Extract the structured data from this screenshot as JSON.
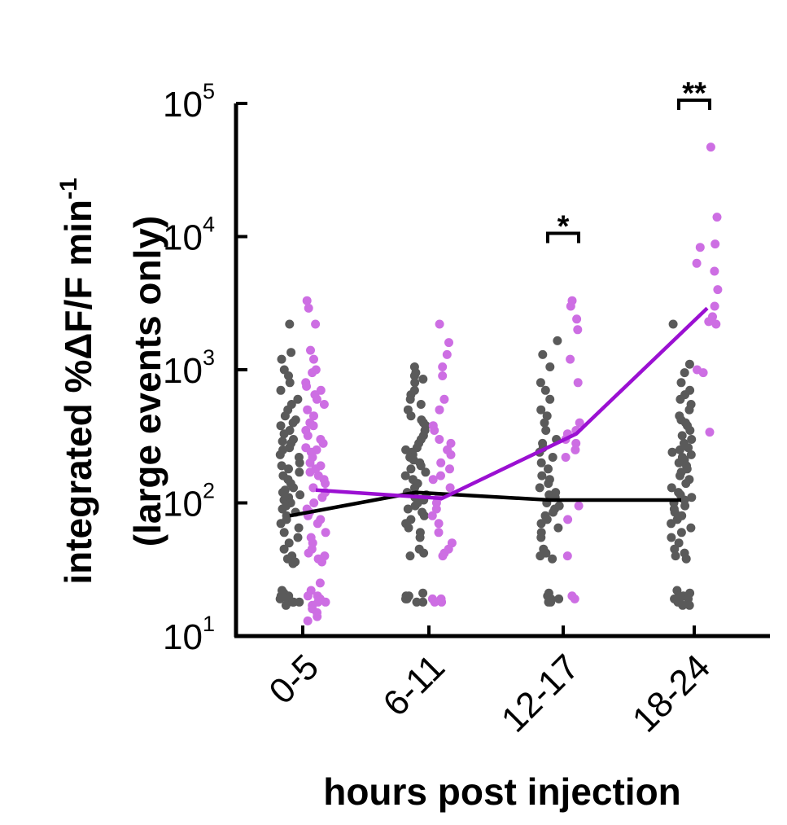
{
  "chart_data": {
    "type": "scatter",
    "xlabel": "hours post injection",
    "ylabel_line1": "integrated %ΔF/F min",
    "ylabel_sup": "-1",
    "ylabel_line2": "(large events only)",
    "yscale": "log",
    "ylim": [
      10,
      100000
    ],
    "yticks": [
      {
        "base": "10",
        "exp": "1",
        "value": 10
      },
      {
        "base": "10",
        "exp": "2",
        "value": 100
      },
      {
        "base": "10",
        "exp": "3",
        "value": 1000
      },
      {
        "base": "10",
        "exp": "4",
        "value": 10000
      },
      {
        "base": "10",
        "exp": "5",
        "value": 100000
      }
    ],
    "categories": [
      "0-5",
      "6-11",
      "12-17",
      "18-24"
    ],
    "colors": {
      "control": "#5a5a5a",
      "treated": "#cd6ee3",
      "control_line": "#000000",
      "treated_line": "#9b10d2"
    },
    "series": [
      {
        "role": "control",
        "medians": [
          80,
          120,
          105,
          105
        ]
      },
      {
        "role": "treated",
        "medians": [
          125,
          108,
          330,
          2900
        ]
      }
    ],
    "significance": [
      {
        "category": "12-17",
        "label": "*",
        "y": 10000
      },
      {
        "category": "18-24",
        "label": "**",
        "y": 100000
      }
    ],
    "points": {
      "control": [
        [
          2200,
          1350,
          1200,
          1000,
          900,
          800,
          700,
          600,
          550,
          500,
          450,
          420,
          400,
          380,
          350,
          330,
          300,
          290,
          280,
          260,
          250,
          230,
          220,
          200,
          190,
          180,
          170,
          160,
          150,
          140,
          130,
          125,
          120,
          115,
          110,
          105,
          100,
          95,
          90,
          85,
          80,
          75,
          70,
          65,
          60,
          55,
          50,
          45,
          40,
          38,
          36,
          35,
          22,
          21,
          20,
          20,
          19,
          19,
          18,
          18,
          18,
          17
        ],
        [
          1050,
          950,
          900,
          850,
          800,
          700,
          650,
          600,
          550,
          500,
          450,
          420,
          400,
          380,
          350,
          320,
          300,
          280,
          260,
          250,
          240,
          230,
          220,
          210,
          200,
          190,
          180,
          170,
          160,
          150,
          140,
          130,
          120,
          115,
          110,
          105,
          100,
          95,
          90,
          85,
          80,
          75,
          70,
          65,
          60,
          55,
          45,
          42,
          40,
          21,
          20,
          20,
          19,
          19,
          18,
          18
        ],
        [
          1650,
          1300,
          1050,
          800,
          700,
          600,
          500,
          450,
          400,
          350,
          300,
          280,
          260,
          240,
          220,
          200,
          180,
          160,
          150,
          140,
          130,
          120,
          115,
          110,
          100,
          95,
          90,
          85,
          80,
          75,
          70,
          65,
          60,
          55,
          45,
          42,
          40,
          38,
          21,
          20,
          19,
          19,
          18,
          18
        ],
        [
          2200,
          1100,
          950,
          800,
          700,
          650,
          600,
          550,
          500,
          450,
          420,
          400,
          380,
          350,
          320,
          300,
          280,
          260,
          250,
          240,
          230,
          220,
          210,
          200,
          190,
          180,
          170,
          160,
          150,
          140,
          130,
          120,
          115,
          110,
          105,
          100,
          95,
          90,
          85,
          80,
          75,
          70,
          65,
          60,
          55,
          50,
          45,
          42,
          40,
          38,
          22,
          21,
          20,
          20,
          19,
          19,
          18,
          18,
          17,
          17
        ]
      ],
      "treated": [
        [
          3300,
          2900,
          2200,
          1400,
          1200,
          1000,
          950,
          800,
          750,
          700,
          650,
          600,
          550,
          500,
          450,
          400,
          380,
          350,
          320,
          300,
          280,
          260,
          250,
          240,
          220,
          200,
          190,
          180,
          170,
          160,
          150,
          140,
          130,
          120,
          110,
          100,
          90,
          85,
          80,
          75,
          70,
          60,
          55,
          50,
          45,
          42,
          40,
          38,
          36,
          25,
          22,
          20,
          20,
          19,
          18,
          18,
          17,
          16,
          15,
          14,
          13
        ],
        [
          2200,
          1600,
          1300,
          1050,
          900,
          600,
          500,
          380,
          350,
          300,
          280,
          250,
          230,
          200,
          180,
          160,
          150,
          130,
          110,
          100,
          90,
          80,
          70,
          60,
          50,
          45,
          42,
          40,
          19,
          19,
          18,
          18
        ],
        [
          3300,
          3000,
          2400,
          2000,
          1200,
          800,
          400,
          350,
          330,
          300,
          280,
          250,
          220,
          95,
          75,
          40,
          20,
          19
        ],
        [
          47000,
          14000,
          8800,
          8300,
          6300,
          5500,
          4000,
          3000,
          2500,
          2300,
          2200,
          1000,
          950,
          340
        ]
      ]
    }
  }
}
